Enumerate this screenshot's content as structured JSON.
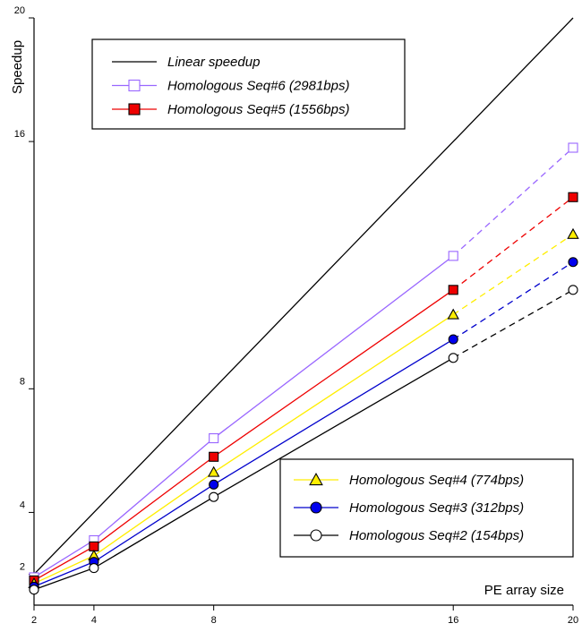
{
  "chart_data": {
    "type": "line",
    "title": "",
    "xlabel": "PE array size",
    "ylabel": "Speedup",
    "x_ticks": [
      2,
      4,
      8,
      16,
      20
    ],
    "y_ticks": [
      2,
      4,
      8,
      16,
      20
    ],
    "xlim": [
      2,
      20
    ],
    "ylim": [
      1,
      20
    ],
    "measured_x": [
      2,
      4,
      8,
      16
    ],
    "projected_x": [
      16,
      20
    ],
    "linear": {
      "name": "Linear speedup",
      "x": [
        2,
        20
      ],
      "values": [
        2,
        20
      ],
      "color": "#000000"
    },
    "series": [
      {
        "name": "Homologous Seq#6 (2981bps)",
        "color": "#9966ff",
        "marker": "square-open",
        "fill": "#ffffff",
        "x": [
          2,
          4,
          8,
          16,
          20
        ],
        "values": [
          1.9,
          3.1,
          6.4,
          12.3,
          15.8
        ]
      },
      {
        "name": "Homologous Seq#5 (1556bps)",
        "color": "#ee0000",
        "marker": "square",
        "fill": "#ee0000",
        "x": [
          2,
          4,
          8,
          16,
          20
        ],
        "values": [
          1.8,
          2.9,
          5.8,
          11.2,
          14.2
        ]
      },
      {
        "name": "Homologous Seq#4 (774bps)",
        "color": "#ffee00",
        "marker": "triangle",
        "fill": "#ffee00",
        "x": [
          2,
          4,
          8,
          16,
          20
        ],
        "values": [
          1.7,
          2.6,
          5.3,
          10.4,
          13.0
        ]
      },
      {
        "name": "Homologous Seq#3 (312bps)",
        "color": "#0000cc",
        "marker": "circle",
        "fill": "#0000ee",
        "x": [
          2,
          4,
          8,
          16,
          20
        ],
        "values": [
          1.6,
          2.4,
          4.9,
          9.6,
          12.1
        ]
      },
      {
        "name": "Homologous Seq#2 (154bps)",
        "color": "#000000",
        "marker": "circle-open",
        "fill": "#ffffff",
        "x": [
          2,
          4,
          8,
          16,
          20
        ],
        "values": [
          1.5,
          2.2,
          4.5,
          9.0,
          11.2
        ]
      }
    ],
    "legend_top": [
      "Linear speedup",
      "Homologous Seq#6 (2981bps)",
      "Homologous Seq#5 (1556bps)"
    ],
    "legend_bottom": [
      "Homologous Seq#4 (774bps)",
      "Homologous Seq#3 (312bps)",
      "Homologous Seq#2 (154bps)"
    ],
    "legend_placement": [
      "top-left",
      "bottom-right"
    ],
    "grid": false
  }
}
